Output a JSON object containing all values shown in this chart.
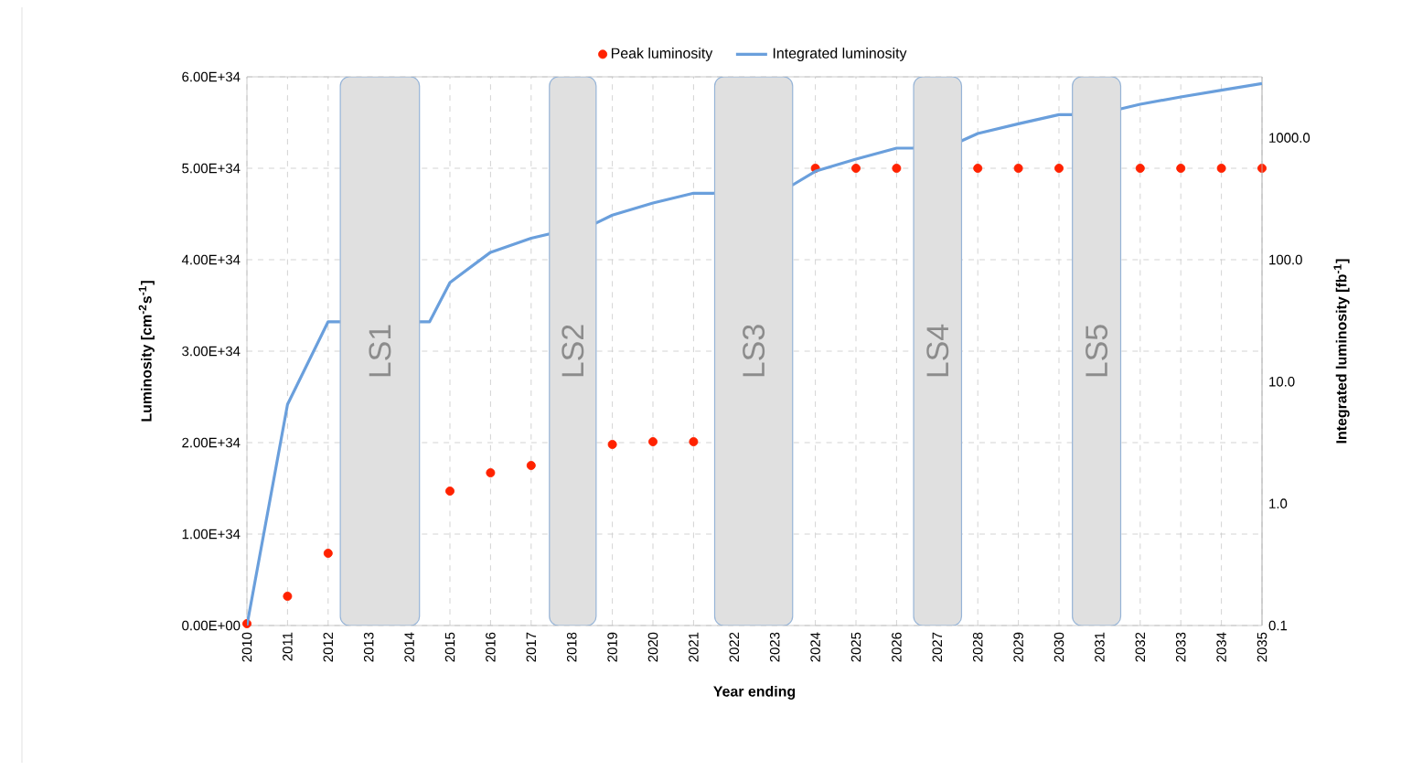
{
  "chart_data": {
    "type": "line",
    "xlabel": "Year ending",
    "ylabel": "Luminosity [cm$^{-2}$s$^{-1}$]",
    "y2label": "Integrated luminosity [fb$^{-1}$]",
    "xlim": [
      2010,
      2035
    ],
    "xticks": [
      2010,
      2011,
      2012,
      2013,
      2014,
      2015,
      2016,
      2017,
      2018,
      2019,
      2020,
      2021,
      2022,
      2023,
      2024,
      2025,
      2026,
      2027,
      2028,
      2029,
      2030,
      2031,
      2032,
      2033,
      2034,
      2035
    ],
    "ylim": [
      0,
      6e+34
    ],
    "yticks": [
      {
        "value": 0,
        "label": "0.00E+00"
      },
      {
        "value": 1e+34,
        "label": "1.00E+34"
      },
      {
        "value": 2e+34,
        "label": "2.00E+34"
      },
      {
        "value": 3e+34,
        "label": "3.00E+34"
      },
      {
        "value": 4e+34,
        "label": "4.00E+34"
      },
      {
        "value": 5e+34,
        "label": "5.00E+34"
      },
      {
        "value": 6e+34,
        "label": "6.00E+34"
      }
    ],
    "y2lim": [
      0.1,
      3162
    ],
    "y2ticks": [
      {
        "value": 0.1,
        "label": "0.1"
      },
      {
        "value": 1,
        "label": "1.0"
      },
      {
        "value": 10,
        "label": "10.0"
      },
      {
        "value": 100,
        "label": "100.0"
      },
      {
        "value": 1000,
        "label": "1000.0"
      }
    ],
    "log": "y2",
    "grid": true,
    "legend": "top",
    "series": [
      {
        "name": "Peak luminosity",
        "type": "scatter",
        "marker": "circle",
        "color": "#ff2200",
        "x": [
          2010,
          2011,
          2012,
          2015,
          2016,
          2017,
          2019,
          2020,
          2021,
          2024,
          2025,
          2026,
          2028,
          2029,
          2030,
          2032,
          2033,
          2034,
          2035
        ],
        "values": [
          2e+32,
          3.2e+33,
          7.9e+33,
          1.47e+34,
          1.67e+34,
          1.75e+34,
          1.98e+34,
          2.01e+34,
          2.01e+34,
          5e+34,
          5e+34,
          5e+34,
          5e+34,
          5e+34,
          5e+34,
          5e+34,
          5e+34,
          5e+34,
          5e+34
        ]
      },
      {
        "name": "Integrated luminosity",
        "marker": "none",
        "axis": "y2",
        "color": "#6a9fdc",
        "x": [
          2010,
          2011,
          2012,
          2014.5,
          2015,
          2016,
          2017,
          2018.6,
          2019,
          2020,
          2021,
          2021.5,
          2023.45,
          2024,
          2025,
          2026,
          2026.4,
          2027.6,
          2028,
          2029,
          2030,
          2030.3,
          2031.5,
          2032,
          2033,
          2034,
          2035
        ],
        "values": [
          0.1,
          6.5,
          31,
          31,
          65,
          115,
          150,
          200,
          232,
          292,
          351,
          351,
          412,
          531,
          668,
          822,
          822,
          944,
          1084,
          1303,
          1549,
          1549,
          1718,
          1884,
          2163,
          2455,
          2786
        ]
      }
    ],
    "bands": [
      {
        "axis": "x",
        "from": 2012.3,
        "to": 2014.25,
        "label": "LS1",
        "color": "#e0e0e0"
      },
      {
        "axis": "x",
        "from": 2017.45,
        "to": 2018.6,
        "label": "LS2",
        "color": "#e0e0e0"
      },
      {
        "axis": "x",
        "from": 2021.52,
        "to": 2023.44,
        "label": "LS3",
        "color": "#e0e0e0"
      },
      {
        "axis": "x",
        "from": 2026.42,
        "to": 2027.6,
        "label": "LS4",
        "color": "#e0e0e0"
      },
      {
        "axis": "x",
        "from": 2030.33,
        "to": 2031.52,
        "label": "LS5",
        "color": "#e0e0e0"
      }
    ]
  }
}
